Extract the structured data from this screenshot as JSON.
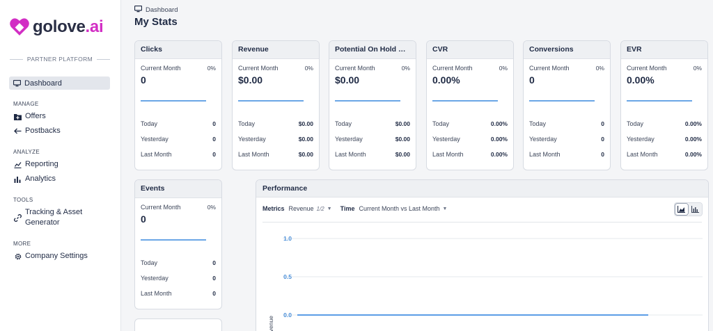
{
  "brand": {
    "name_main": "golove",
    "name_accent": ".ai",
    "platform": "PARTNER PLATFORM",
    "accent_color": "#d22ec4"
  },
  "sidebar": {
    "active": {
      "label": "Dashboard",
      "icon": "monitor-icon"
    },
    "sections": [
      {
        "title": "MANAGE",
        "items": [
          {
            "label": "Offers",
            "icon": "folder-plus-icon"
          },
          {
            "label": "Postbacks",
            "icon": "arrow-left-icon"
          }
        ]
      },
      {
        "title": "ANALYZE",
        "items": [
          {
            "label": "Reporting",
            "icon": "chart-line-icon"
          },
          {
            "label": "Analytics",
            "icon": "bar-chart-icon"
          }
        ]
      },
      {
        "title": "TOOLS",
        "items": [
          {
            "label": "Tracking & Asset Generator",
            "icon": "link-icon"
          }
        ]
      },
      {
        "title": "MORE",
        "items": [
          {
            "label": "Company Settings",
            "icon": "gear-icon"
          }
        ]
      }
    ]
  },
  "header": {
    "breadcrumb": "Dashboard",
    "title": "My Stats"
  },
  "common": {
    "current_month": "Current Month",
    "today": "Today",
    "yesterday": "Yesterday",
    "last_month": "Last Month"
  },
  "cards": [
    {
      "title": "Clicks",
      "pct": "0%",
      "value": "0",
      "today": "0",
      "yesterday": "0",
      "last_month": "0"
    },
    {
      "title": "Revenue",
      "pct": "0%",
      "value": "$0.00",
      "today": "$0.00",
      "yesterday": "$0.00",
      "last_month": "$0.00"
    },
    {
      "title": "Potential On Hold Rev...",
      "pct": "0%",
      "value": "$0.00",
      "today": "$0.00",
      "yesterday": "$0.00",
      "last_month": "$0.00"
    },
    {
      "title": "CVR",
      "pct": "0%",
      "value": "0.00%",
      "today": "0.00%",
      "yesterday": "0.00%",
      "last_month": "0.00%"
    },
    {
      "title": "Conversions",
      "pct": "0%",
      "value": "0",
      "today": "0",
      "yesterday": "0",
      "last_month": "0"
    },
    {
      "title": "EVR",
      "pct": "0%",
      "value": "0.00%",
      "today": "0.00%",
      "yesterday": "0.00%",
      "last_month": "0.00%"
    },
    {
      "title": "Events",
      "pct": "0%",
      "value": "0",
      "today": "0",
      "yesterday": "0",
      "last_month": "0"
    }
  ],
  "performance": {
    "title": "Performance",
    "metrics_label": "Metrics",
    "metrics_value": "Revenue",
    "metrics_count": "1/2",
    "time_label": "Time",
    "time_value": "Current Month vs Last Month",
    "toggle_icons": [
      "area-chart-icon",
      "bar-chart-icon"
    ]
  },
  "chart_data": {
    "type": "line",
    "ylabel": "Revenue",
    "yticks": [
      "1.0",
      "0.5",
      "0.0"
    ],
    "ylim": [
      0,
      1
    ],
    "series": [
      {
        "values": [
          0,
          0
        ]
      }
    ],
    "line_color": "#5b9de6"
  }
}
